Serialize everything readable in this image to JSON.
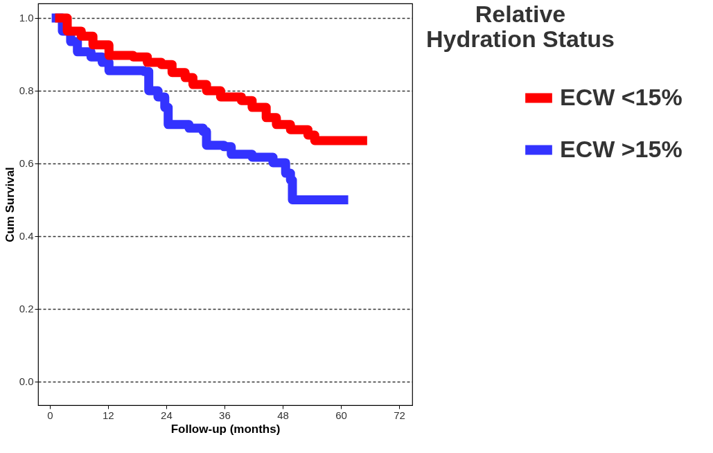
{
  "chart_data": {
    "type": "step",
    "xlabel": "Follow-up (months)",
    "ylabel": "Cum Survival",
    "legend_title": "Relative Hydration Status",
    "xlim": [
      -2.4,
      74.7
    ],
    "ylim": [
      -0.065,
      1.04
    ],
    "xticks": [
      0,
      12,
      24,
      36,
      48,
      60,
      72
    ],
    "yticks": [
      {
        "value": 0,
        "label": "0.0"
      },
      {
        "value": 0.2,
        "label": "0.2"
      },
      {
        "value": 0.4,
        "label": "0.4"
      },
      {
        "value": 0.6,
        "label": "0.6"
      },
      {
        "value": 0.8,
        "label": "0.8"
      },
      {
        "value": 1,
        "label": "1.0"
      }
    ],
    "grid": "y",
    "legend": "right",
    "line_style": "solid",
    "marker": "none",
    "series": [
      {
        "name": "ECW <15%",
        "color": "#ff0000",
        "x": [
          1.1,
          3.6,
          6.5,
          8.9,
          12.2,
          17.2,
          20.1,
          23,
          25.2,
          27.9,
          29.5,
          32.3,
          35.2,
          39.5,
          41.7,
          44.6,
          46.7,
          49.6,
          53.2,
          54.6,
          65.4
        ],
        "values": [
          1.0,
          0.964,
          0.95,
          0.926,
          0.897,
          0.893,
          0.878,
          0.872,
          0.85,
          0.836,
          0.817,
          0.8,
          0.783,
          0.773,
          0.754,
          0.726,
          0.707,
          0.693,
          0.678,
          0.663,
          0.663
        ]
      },
      {
        "name": "ECW >15%",
        "color": "#3333ff",
        "x": [
          0.4,
          2.6,
          4.3,
          5.7,
          8.5,
          10.8,
          12.2,
          19.4,
          20.4,
          22.3,
          23.7,
          24.4,
          28.7,
          31.6,
          32.3,
          35.9,
          37.4,
          41.7,
          46,
          48.6,
          49.6,
          50,
          61.5
        ],
        "values": [
          1.0,
          0.964,
          0.935,
          0.907,
          0.893,
          0.878,
          0.855,
          0.853,
          0.8,
          0.783,
          0.754,
          0.707,
          0.697,
          0.688,
          0.65,
          0.646,
          0.625,
          0.617,
          0.602,
          0.573,
          0.554,
          0.5,
          0.5
        ]
      }
    ]
  }
}
